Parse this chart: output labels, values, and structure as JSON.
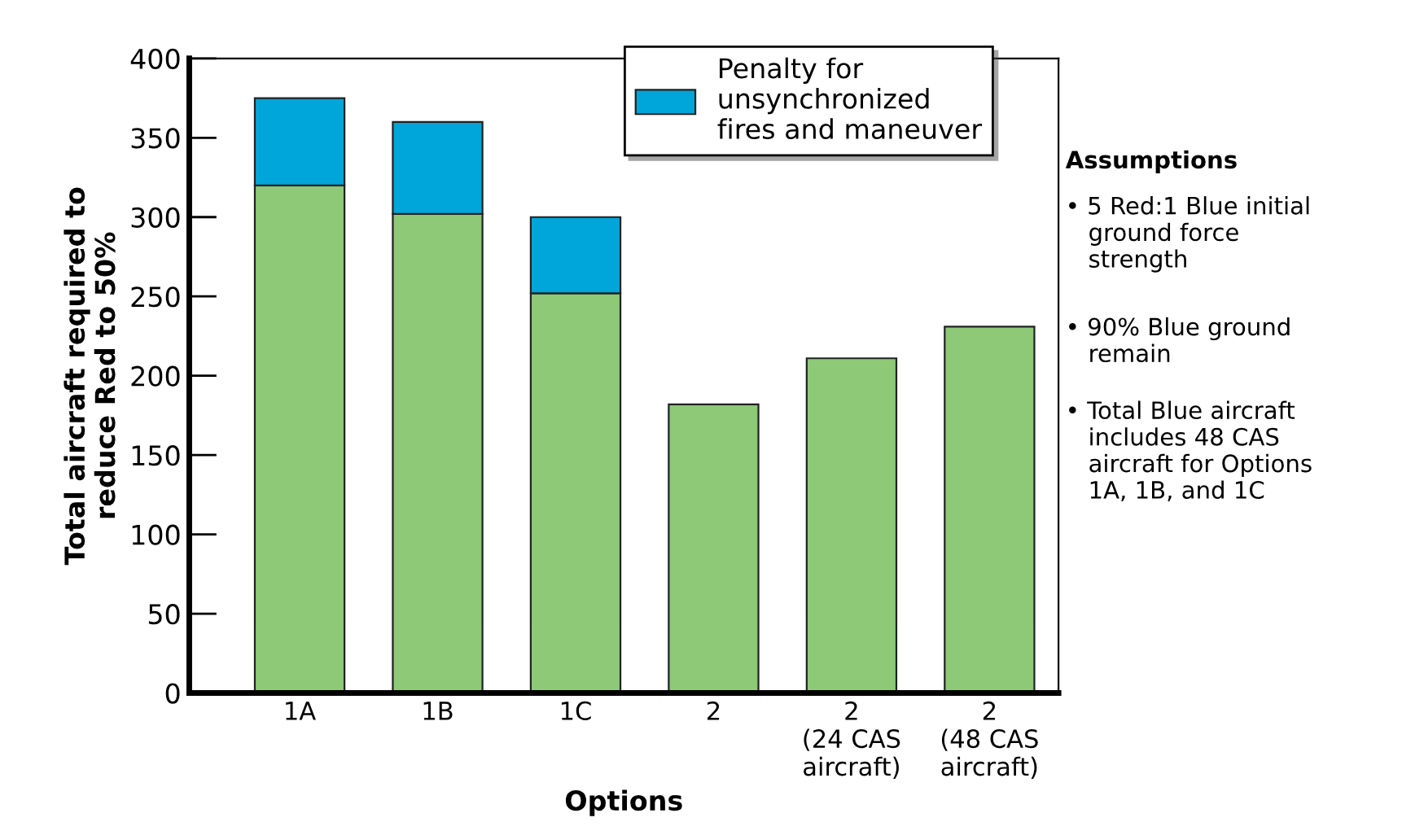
{
  "chart_data": {
    "type": "bar",
    "stacked": true,
    "xlabel": "Options",
    "ylabel": "Total aircraft required to\nreduce Red to 50%",
    "categories": [
      "1A",
      "1B",
      "1C",
      "2",
      "2\n(24 CAS\naircraft)",
      "2\n(48 CAS\naircraft)"
    ],
    "series": [
      {
        "color": "#8dc977",
        "values": [
          320,
          302,
          252,
          182,
          211,
          231
        ]
      },
      {
        "name": "Penalty for\nunsynchronized\nfires and maneuver",
        "color": "#00a6d9",
        "values": [
          55,
          58,
          48,
          null,
          null,
          null
        ]
      }
    ],
    "ylim": [
      0,
      400
    ],
    "yticks": [
      0,
      50,
      100,
      150,
      200,
      250,
      300,
      350,
      400
    ],
    "grid": false,
    "legend": "top right",
    "annotations": [
      "Assumptions",
      "• 5 Red:1 Blue initial\n   ground force\n   strength",
      "• 90% Blue ground\n   remain",
      "• Total Blue aircraft\n   includes 48 CAS\n   aircraft for Options\n   1A, 1B, and 1C"
    ]
  }
}
